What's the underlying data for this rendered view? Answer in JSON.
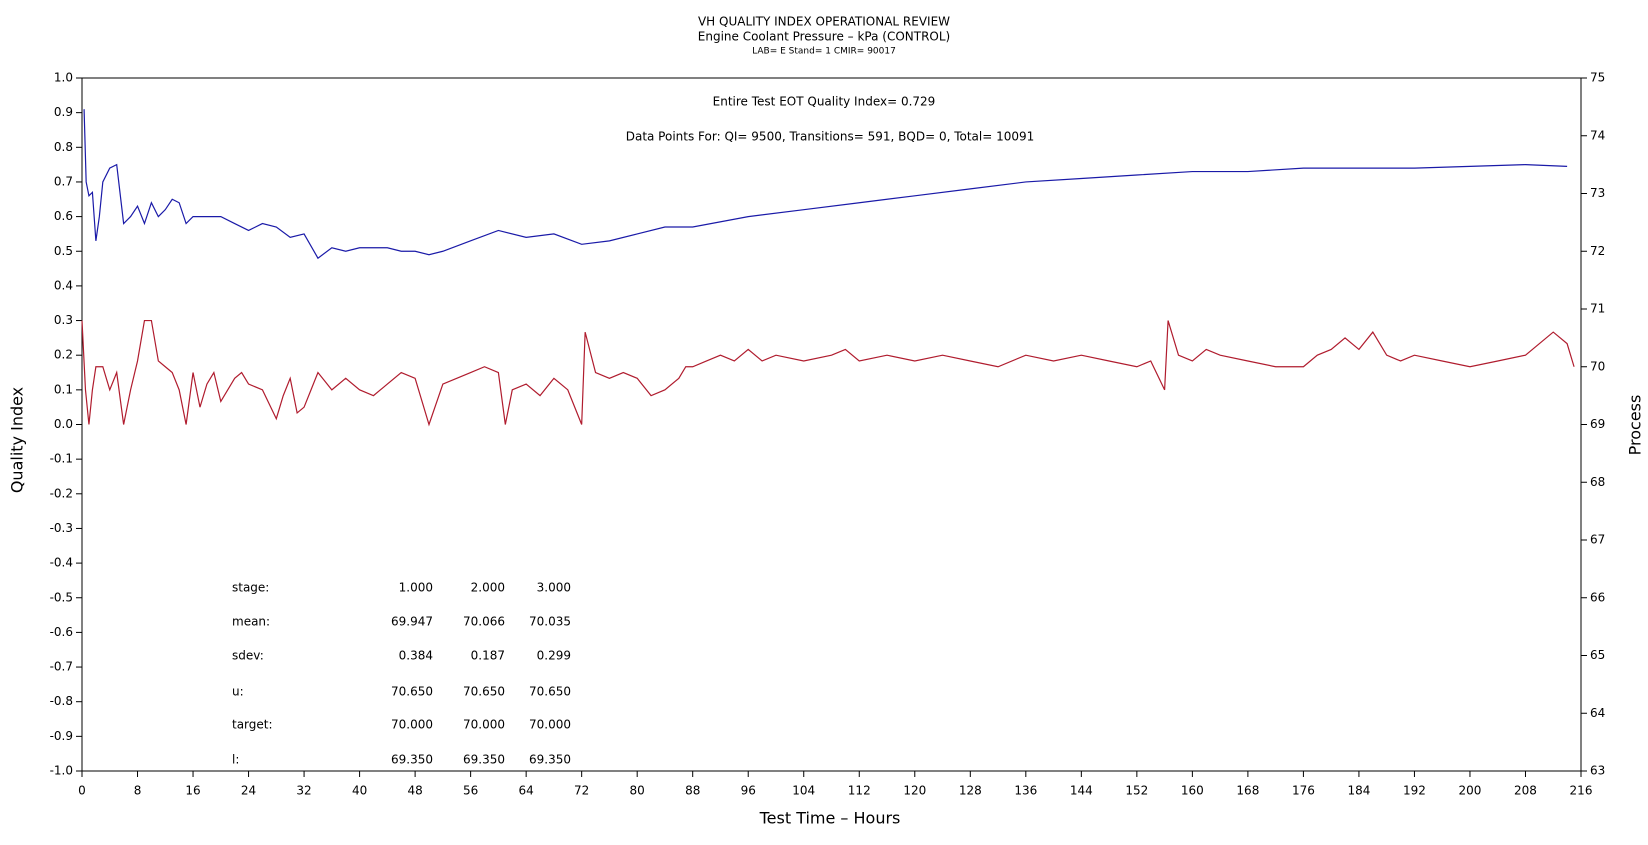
{
  "chart_data": {
    "type": "line",
    "title": "VH QUALITY INDEX OPERATIONAL REVIEW",
    "subtitle": "Engine Coolant Pressure – kPa (CONTROL)",
    "subtitle2": "LAB= E Stand= 1 CMIR= 90017",
    "annotations": [
      "Entire Test EOT Quality Index=   0.729",
      "Data Points For: QI=  9500, Transitions=   591, BQD=     0, Total= 10091"
    ],
    "xlabel": "Test Time – Hours",
    "ylabel": "Quality Index",
    "y2label": "Process",
    "xlim": [
      0,
      216
    ],
    "xticks": [
      0,
      8,
      16,
      24,
      32,
      40,
      48,
      56,
      64,
      72,
      80,
      88,
      96,
      104,
      112,
      120,
      128,
      136,
      144,
      152,
      160,
      168,
      176,
      184,
      192,
      200,
      208,
      216
    ],
    "ylim": [
      -1,
      1
    ],
    "yticks": [
      {
        "value": 1,
        "label": "1.0"
      },
      0.9,
      0.8,
      0.7,
      0.6,
      0.5,
      0.4,
      0.3,
      0.2,
      0.1,
      {
        "value": 0,
        "label": "0.0"
      },
      -0.1,
      -0.2,
      -0.3,
      -0.4,
      -0.5,
      -0.6,
      -0.7,
      -0.8,
      -0.9,
      {
        "value": -1,
        "label": "-1.0"
      }
    ],
    "y2lim": [
      63,
      75
    ],
    "y2ticks": [
      63,
      64,
      65,
      66,
      67,
      68,
      69,
      70,
      71,
      72,
      73,
      74,
      75
    ],
    "series": [
      {
        "color": "#1a1aa8",
        "axis": "y",
        "x": [
          0.3,
          0.6,
          1,
          1.5,
          2,
          2.5,
          3,
          4,
          5,
          6,
          7,
          8,
          9,
          10,
          11,
          12,
          13,
          14,
          15,
          16,
          18,
          20,
          22,
          24,
          26,
          28,
          30,
          32,
          34,
          36,
          38,
          40,
          44,
          46,
          48,
          50,
          52,
          56,
          60,
          64,
          68,
          72,
          76,
          80,
          84,
          88,
          96,
          104,
          112,
          120,
          128,
          136,
          144,
          152,
          160,
          168,
          176,
          184,
          192,
          200,
          208,
          214
        ],
        "values": [
          0.91,
          0.7,
          0.66,
          0.67,
          0.53,
          0.6,
          0.7,
          0.74,
          0.75,
          0.58,
          0.6,
          0.63,
          0.58,
          0.64,
          0.6,
          0.62,
          0.65,
          0.64,
          0.58,
          0.6,
          0.6,
          0.6,
          0.58,
          0.56,
          0.58,
          0.57,
          0.54,
          0.55,
          0.48,
          0.51,
          0.5,
          0.51,
          0.51,
          0.5,
          0.5,
          0.49,
          0.5,
          0.53,
          0.56,
          0.54,
          0.55,
          0.52,
          0.53,
          0.55,
          0.57,
          0.57,
          0.6,
          0.62,
          0.64,
          0.66,
          0.68,
          0.7,
          0.71,
          0.72,
          0.73,
          0.73,
          0.74,
          0.74,
          0.74,
          0.745,
          0.75,
          0.745
        ]
      },
      {
        "color": "#b01c2e",
        "axis": "y2",
        "x": [
          0,
          0.5,
          1,
          1.5,
          2,
          3,
          4,
          5,
          6,
          7,
          8,
          9,
          10,
          11,
          12,
          13,
          14,
          15,
          16,
          17,
          18,
          19,
          20,
          22,
          23,
          24,
          26,
          28,
          29,
          30,
          31,
          32,
          33,
          34,
          36,
          38,
          40,
          42,
          44,
          46,
          48,
          50,
          52,
          54,
          56,
          58,
          60,
          61,
          62,
          64,
          66,
          68,
          70,
          72,
          72.5,
          74,
          76,
          78,
          80,
          82,
          84,
          86,
          87,
          88,
          90,
          92,
          94,
          96,
          98,
          100,
          104,
          108,
          110,
          112,
          116,
          120,
          124,
          128,
          132,
          136,
          140,
          144,
          148,
          152,
          154,
          156,
          156.5,
          158,
          160,
          162,
          164,
          168,
          172,
          176,
          178,
          180,
          182,
          184,
          186,
          188,
          190,
          192,
          196,
          200,
          204,
          208,
          212,
          214,
          215
        ],
        "values": [
          70.8,
          69.6,
          69.0,
          69.6,
          70.0,
          70.0,
          69.6,
          69.9,
          69.0,
          69.6,
          70.1,
          70.8,
          70.8,
          70.1,
          70.0,
          69.9,
          69.6,
          69.0,
          69.9,
          69.3,
          69.7,
          69.9,
          69.4,
          69.8,
          69.9,
          69.7,
          69.6,
          69.1,
          69.5,
          69.8,
          69.2,
          69.3,
          69.6,
          69.9,
          69.6,
          69.8,
          69.6,
          69.5,
          69.7,
          69.9,
          69.8,
          69.0,
          69.7,
          69.8,
          69.9,
          70.0,
          69.9,
          69.0,
          69.6,
          69.7,
          69.5,
          69.8,
          69.6,
          69.0,
          70.6,
          69.9,
          69.8,
          69.9,
          69.8,
          69.5,
          69.6,
          69.8,
          70.0,
          70.0,
          70.1,
          70.2,
          70.1,
          70.3,
          70.1,
          70.2,
          70.1,
          70.2,
          70.3,
          70.1,
          70.2,
          70.1,
          70.2,
          70.1,
          70.0,
          70.2,
          70.1,
          70.2,
          70.1,
          70.0,
          70.1,
          69.6,
          70.8,
          70.2,
          70.1,
          70.3,
          70.2,
          70.1,
          70.0,
          70.0,
          70.2,
          70.3,
          70.5,
          70.3,
          70.6,
          70.2,
          70.1,
          70.2,
          70.1,
          70.0,
          70.1,
          70.2,
          70.6,
          70.4,
          70.0
        ]
      }
    ],
    "stats": {
      "rows": [
        {
          "label": "stage:",
          "values": [
            "1.000",
            "2.000",
            "3.000"
          ]
        },
        {
          "label": "mean:",
          "values": [
            "69.947",
            "70.066",
            "70.035"
          ]
        },
        {
          "label": "sdev:",
          "values": [
            "0.384",
            "0.187",
            "0.299"
          ]
        },
        {
          "label": "u:",
          "values": [
            "70.650",
            "70.650",
            "70.650"
          ]
        },
        {
          "label": "target:",
          "values": [
            "70.000",
            "70.000",
            "70.000"
          ]
        },
        {
          "label": "l:",
          "values": [
            "69.350",
            "69.350",
            "69.350"
          ]
        }
      ]
    }
  }
}
